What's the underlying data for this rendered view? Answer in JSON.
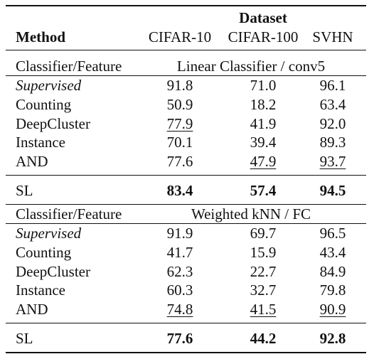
{
  "header": {
    "group_label": "Dataset",
    "columns": [
      "Method",
      "CIFAR-10",
      "CIFAR-100",
      "SVHN"
    ]
  },
  "sections": [
    {
      "label": "Classifier/Feature",
      "setting": "Linear Classifier / conv5",
      "rows": [
        [
          "Supervised",
          "91.8",
          "71.0",
          "96.1"
        ],
        [
          "Counting",
          "50.9",
          "18.2",
          "63.4"
        ],
        [
          "DeepCluster",
          "77.9",
          "41.9",
          "92.0"
        ],
        [
          "Instance",
          "70.1",
          "39.4",
          "89.3"
        ],
        [
          "AND",
          "77.6",
          "47.9",
          "93.7"
        ]
      ],
      "summary": [
        "SL",
        "83.4",
        "57.4",
        "94.5"
      ]
    },
    {
      "label": "Classifier/Feature",
      "setting": "Weighted kNN / FC",
      "rows": [
        [
          "Supervised",
          "91.9",
          "69.7",
          "96.5"
        ],
        [
          "Counting",
          "41.7",
          "15.9",
          "43.4"
        ],
        [
          "DeepCluster",
          "62.3",
          "22.7",
          "84.9"
        ],
        [
          "Instance",
          "60.3",
          "32.7",
          "79.8"
        ],
        [
          "AND",
          "74.8",
          "41.5",
          "90.9"
        ]
      ],
      "summary": [
        "SL",
        "77.6",
        "44.2",
        "92.8"
      ]
    }
  ]
}
